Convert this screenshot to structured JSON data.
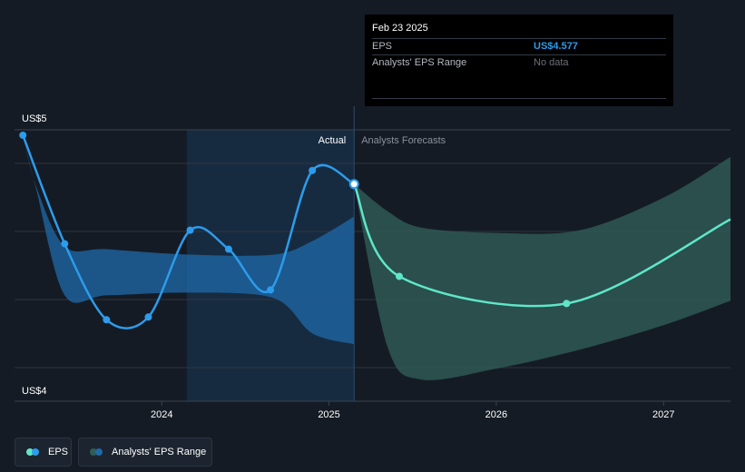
{
  "chart_data": {
    "type": "line",
    "title": "",
    "xlabel": "",
    "ylabel": "",
    "ylim": [
      4,
      5
    ],
    "y_axis_labels": {
      "top": "US$5",
      "bottom": "US$4"
    },
    "x_ticks": [
      "2024",
      "2025",
      "2026",
      "2027"
    ],
    "x_tick_values": [
      2024,
      2025,
      2026,
      2027
    ],
    "x_range": [
      2023.12,
      2027.4
    ],
    "divider_x": 2025.15,
    "highlight_range": [
      2024.15,
      2025.15
    ],
    "section_labels": {
      "actual": "Actual",
      "forecast": "Analysts Forecasts"
    },
    "series": [
      {
        "name": "EPS (actual)",
        "x": [
          2023.17,
          2023.42,
          2023.67,
          2023.92,
          2024.17,
          2024.4,
          2024.65,
          2024.9,
          2025.15
        ],
        "values": [
          4.98,
          4.58,
          4.3,
          4.31,
          4.63,
          4.56,
          4.41,
          4.85,
          4.8
        ]
      },
      {
        "name": "EPS (forecast)",
        "x": [
          2025.15,
          2025.42,
          2026.42,
          2027.4
        ],
        "values": [
          4.8,
          4.46,
          4.36,
          4.67
        ]
      },
      {
        "name": "Analysts' EPS Range (historical)",
        "x": [
          2023.17,
          2023.25,
          2023.42,
          2023.67,
          2024.17,
          2024.67,
          2024.9,
          2025.15
        ],
        "upper": [
          4.98,
          4.79,
          4.57,
          4.56,
          4.54,
          4.54,
          4.59,
          4.68
        ],
        "lower": [
          4.98,
          4.78,
          4.39,
          4.39,
          4.4,
          4.38,
          4.25,
          4.21
        ]
      },
      {
        "name": "Analysts' EPS Range (forecast)",
        "x": [
          2025.15,
          2025.35,
          2025.55,
          2026.0,
          2026.5,
          2027.0,
          2027.4
        ],
        "upper": [
          4.8,
          4.7,
          4.64,
          4.62,
          4.63,
          4.75,
          4.9
        ],
        "lower": [
          4.8,
          4.2,
          4.08,
          4.12,
          4.19,
          4.28,
          4.37
        ]
      }
    ]
  },
  "tooltip": {
    "date": "Feb 23 2025",
    "eps_label": "EPS",
    "eps_value": "US$4.577",
    "range_label": "Analysts' EPS Range",
    "range_value": "No data"
  },
  "legend": {
    "eps_label": "EPS",
    "range_label": "Analysts' EPS Range"
  },
  "colors": {
    "background": "#151b24",
    "actual_line": "#2c9cec",
    "forecast_line": "#5fe6c8",
    "actual_band": "#1f6aa8",
    "forecast_band": "#2f5c58",
    "highlight": "#1a3858",
    "grid": "#2c3440",
    "axis_text": "#ffffff",
    "muted_text": "#8a9099"
  }
}
